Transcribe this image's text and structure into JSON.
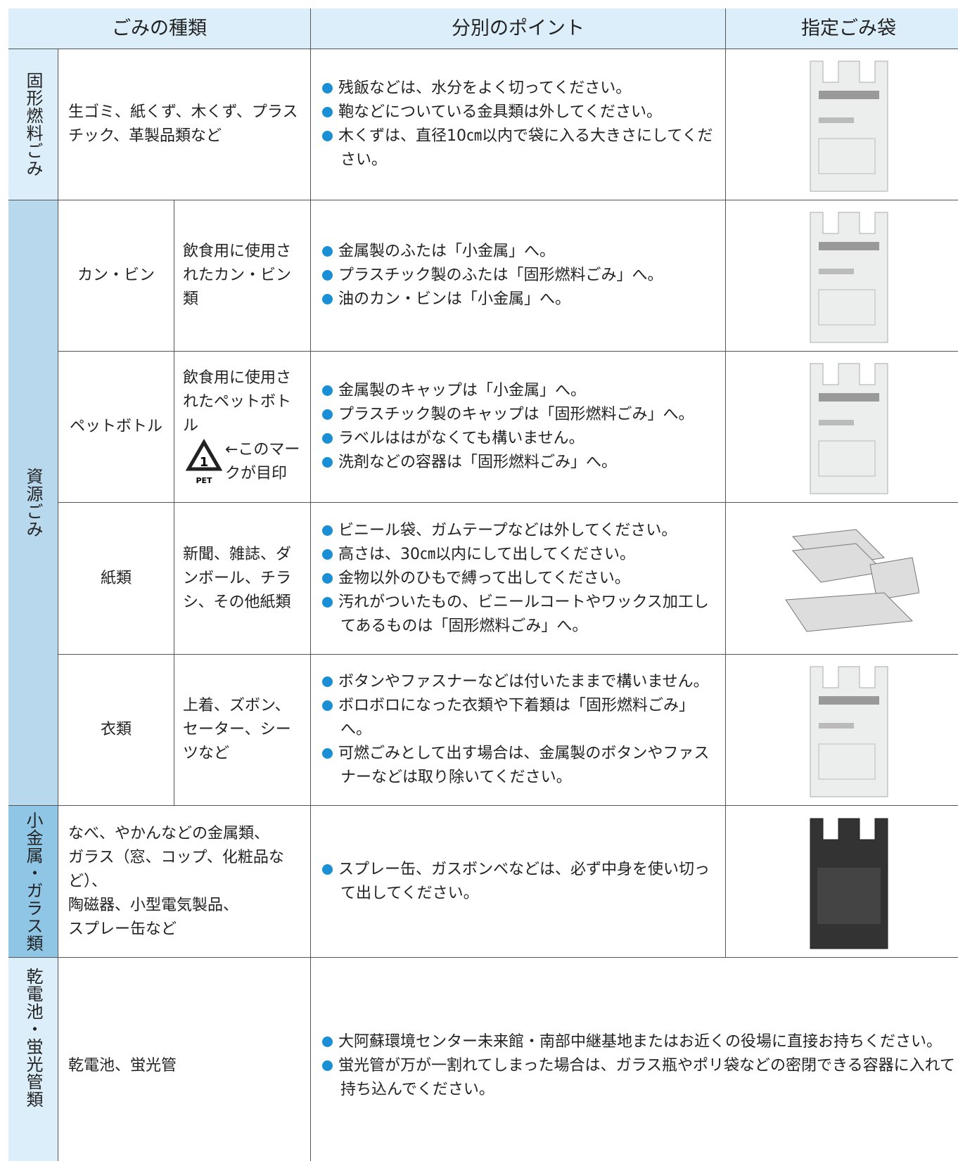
{
  "header": {
    "columns": [
      "ごみの種類",
      "分別のポイント",
      "指定ごみ袋"
    ]
  },
  "sections": [
    {
      "category": "固形燃料ごみ",
      "items": [
        "生ゴミ、紙くず、木くず、プラスチック、革製品類など"
      ],
      "points": [
        "残飯などは、水分をよく切ってください。",
        "鞄などについている金具類は外してください。",
        "木くずは、直径10㎝以内で袋に入る大きさにしてください。"
      ]
    },
    {
      "category": "資源ごみ",
      "subrows": [
        {
          "name": "カン・ビン",
          "description": "飲食用に使用されたカン・ビン類",
          "points": [
            "金属製のふたは「小金属」へ。",
            "プラスチック製のふたは「固形燃料ごみ」へ。",
            "油のカン・ビンは「小金属」へ。"
          ]
        },
        {
          "name": "ペットボトル",
          "description": "飲食用に使用されたペットボトル",
          "mark_number": "1",
          "mark_label": "PET",
          "mark_note": "←このマークが目印",
          "points": [
            "金属製のキャップは「小金属」へ。",
            "プラスチック製のキャップは「固形燃料ごみ」へ。",
            "ラベルははがなくても構いません。",
            "洗剤などの容器は「固形燃料ごみ」へ。"
          ]
        },
        {
          "name": "紙類",
          "description": "新聞、雑誌、ダンボール、チラシ、その他紙類",
          "points": [
            "ビニール袋、ガムテープなどは外してください。",
            "高さは、30㎝以内にして出してください。",
            "金物以外のひもで縛って出してください。",
            "汚れがついたもの、ビニールコートやワックス加工してあるものは「固形燃料ごみ」へ。"
          ]
        },
        {
          "name": "衣類",
          "description": "上着、ズボン、セーター、シーツなど",
          "points": [
            "ボタンやファスナーなどは付いたままで構いません。",
            "ボロボロになった衣類や下着類は「固形燃料ごみ」へ。",
            "可燃ごみとして出す場合は、金属製のボタンやファスナーなどは取り除いてください。"
          ]
        }
      ]
    },
    {
      "category": "小金属・ガラス類",
      "items": [
        "なべ、やかんなどの金属類、",
        "ガラス（窓、コップ、化粧品など）、",
        "陶磁器、小型電気製品、",
        "スプレー缶など"
      ],
      "points": [
        "スプレー缶、ガスボンベなどは、必ず中身を使い切って出してください。"
      ]
    },
    {
      "category": "乾電池・蛍光管類",
      "items": [
        "乾電池、蛍光管"
      ],
      "points": [
        "大阿蘇環境センター未来館・南部中継基地またはお近くの役場に直接お持ちください。",
        "蛍光管が万が一割れてしまった場合は、ガラス瓶やポリ袋などの密閉できる容器に入れて持ち込んでください。"
      ]
    }
  ]
}
